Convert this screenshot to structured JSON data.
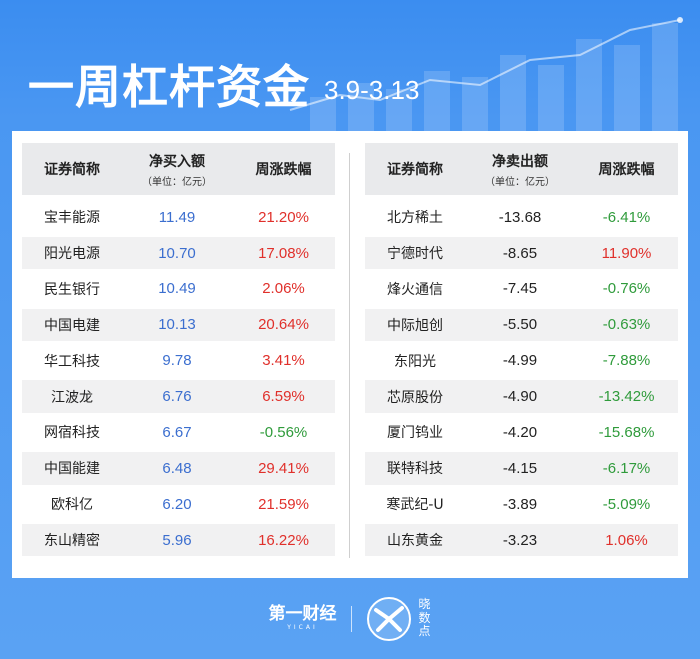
{
  "header": {
    "title": "一周杠杆资金",
    "date": "3.9-3.13"
  },
  "left_table": {
    "headers": {
      "name": "证券简称",
      "amount": "净买入额",
      "amount_unit": "（单位：亿元）",
      "change": "周涨跌幅"
    },
    "rows": [
      {
        "name": "宝丰能源",
        "amount": "11.49",
        "change": "21.20%"
      },
      {
        "name": "阳光电源",
        "amount": "10.70",
        "change": "17.08%"
      },
      {
        "name": "民生银行",
        "amount": "10.49",
        "change": "2.06%"
      },
      {
        "name": "中国电建",
        "amount": "10.13",
        "change": "20.64%"
      },
      {
        "name": "华工科技",
        "amount": "9.78",
        "change": "3.41%"
      },
      {
        "name": "江波龙",
        "amount": "6.76",
        "change": "6.59%"
      },
      {
        "name": "网宿科技",
        "amount": "6.67",
        "change": "-0.56%"
      },
      {
        "name": "中国能建",
        "amount": "6.48",
        "change": "29.41%"
      },
      {
        "name": "欧科亿",
        "amount": "6.20",
        "change": "21.59%"
      },
      {
        "name": "东山精密",
        "amount": "5.96",
        "change": "16.22%"
      }
    ]
  },
  "right_table": {
    "headers": {
      "name": "证券简称",
      "amount": "净卖出额",
      "amount_unit": "（单位：亿元）",
      "change": "周涨跌幅"
    },
    "rows": [
      {
        "name": "北方稀土",
        "amount": "-13.68",
        "change": "-6.41%"
      },
      {
        "name": "宁德时代",
        "amount": "-8.65",
        "change": "11.90%"
      },
      {
        "name": "烽火通信",
        "amount": "-7.45",
        "change": "-0.76%"
      },
      {
        "name": "中际旭创",
        "amount": "-5.50",
        "change": "-0.63%"
      },
      {
        "name": "东阳光",
        "amount": "-4.99",
        "change": "-7.88%"
      },
      {
        "name": "芯原股份",
        "amount": "-4.90",
        "change": "-13.42%"
      },
      {
        "name": "厦门钨业",
        "amount": "-4.20",
        "change": "-15.68%"
      },
      {
        "name": "联特科技",
        "amount": "-4.15",
        "change": "-6.17%"
      },
      {
        "name": "寒武纪-U",
        "amount": "-3.89",
        "change": "-5.09%"
      },
      {
        "name": "山东黄金",
        "amount": "-3.23",
        "change": "1.06%"
      }
    ]
  },
  "footer": {
    "logo_cn": "第一财经",
    "logo_en": "YICAI",
    "logo2_text": "晓数点"
  },
  "colors": {
    "background": "#4a97f2",
    "header_row": "#e9eaec",
    "positive": "#e0302b",
    "negative": "#2f9b3b",
    "buy_amount": "#3b6ecf"
  }
}
